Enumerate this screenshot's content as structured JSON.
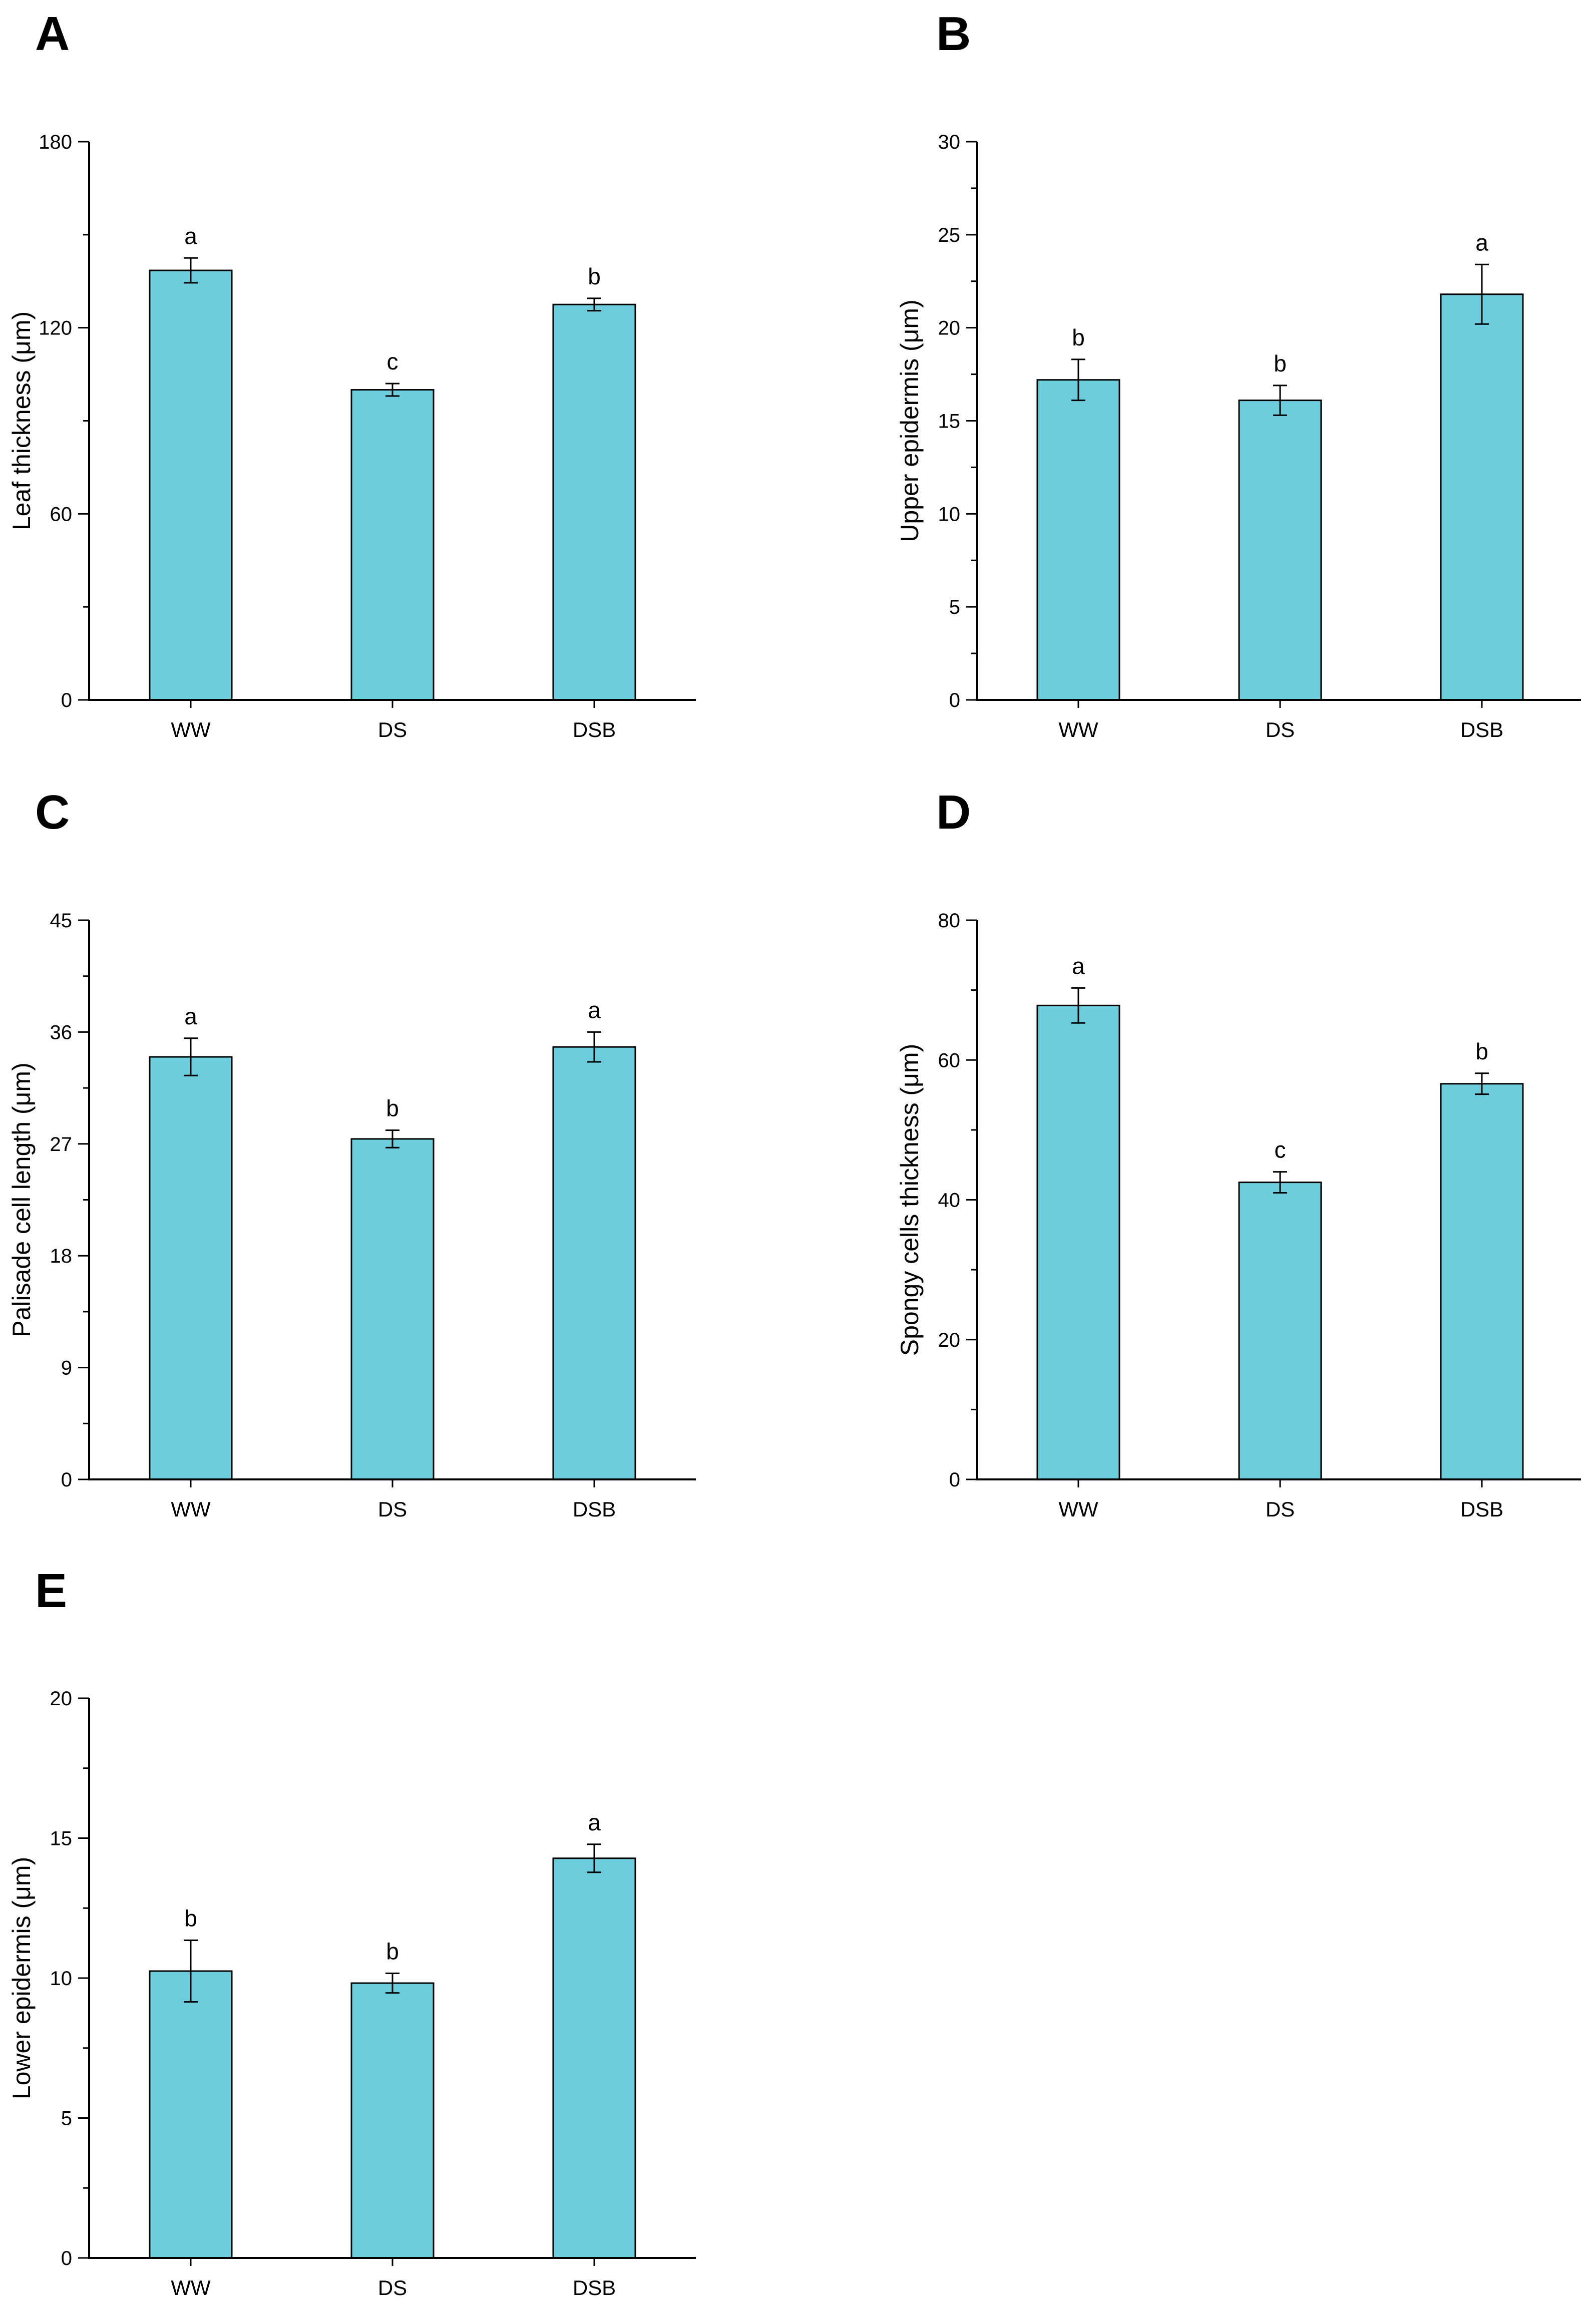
{
  "chart_data": [
    {
      "panel": "A",
      "type": "bar",
      "categories": [
        "WW",
        "DS",
        "DSB"
      ],
      "values": [
        138.5,
        100,
        127.5
      ],
      "errors": [
        4,
        2,
        2
      ],
      "significance": [
        "a",
        "c",
        "b"
      ],
      "ylabel": "Leaf thickness (μm)",
      "ylim": [
        0,
        180
      ],
      "major_ticks": [
        0,
        60,
        120,
        180
      ],
      "minor_step": 30,
      "bar_color": "#6ccddd"
    },
    {
      "panel": "B",
      "type": "bar",
      "categories": [
        "WW",
        "DS",
        "DSB"
      ],
      "values": [
        17.2,
        16.1,
        21.8
      ],
      "errors": [
        1.1,
        0.8,
        1.6
      ],
      "significance": [
        "b",
        "b",
        "a"
      ],
      "ylabel": "Upper epidermis (μm)",
      "ylim": [
        0,
        30
      ],
      "major_ticks": [
        0,
        5,
        10,
        15,
        20,
        25,
        30
      ],
      "minor_step": 2.5,
      "bar_color": "#6ccddd"
    },
    {
      "panel": "C",
      "type": "bar",
      "categories": [
        "WW",
        "DS",
        "DSB"
      ],
      "values": [
        34,
        27.4,
        34.8
      ],
      "errors": [
        1.5,
        0.7,
        1.2
      ],
      "significance": [
        "a",
        "b",
        "a"
      ],
      "ylabel": "Palisade cell length (μm)",
      "ylim": [
        0,
        45
      ],
      "major_ticks": [
        0,
        9,
        18,
        27,
        36,
        45
      ],
      "minor_step": 4.5,
      "bar_color": "#6ccddd"
    },
    {
      "panel": "D",
      "type": "bar",
      "categories": [
        "WW",
        "DS",
        "DSB"
      ],
      "values": [
        67.8,
        42.5,
        56.6
      ],
      "errors": [
        2.5,
        1.5,
        1.5
      ],
      "significance": [
        "a",
        "c",
        "b"
      ],
      "ylabel": "Spongy cells thickness (μm)",
      "ylim": [
        0,
        80
      ],
      "major_ticks": [
        0,
        20,
        40,
        60,
        80
      ],
      "minor_step": 10,
      "bar_color": "#6ccddd"
    },
    {
      "panel": "E",
      "type": "bar",
      "categories": [
        "WW",
        "DS",
        "DSB"
      ],
      "values": [
        10.25,
        9.82,
        14.28
      ],
      "errors": [
        1.1,
        0.35,
        0.5
      ],
      "significance": [
        "b",
        "b",
        "a"
      ],
      "ylabel": "Lower epidermis (μm)",
      "ylim": [
        0,
        20
      ],
      "major_ticks": [
        0,
        5,
        10,
        15,
        20
      ],
      "minor_step": 2.5,
      "bar_color": "#6ccddd"
    }
  ]
}
